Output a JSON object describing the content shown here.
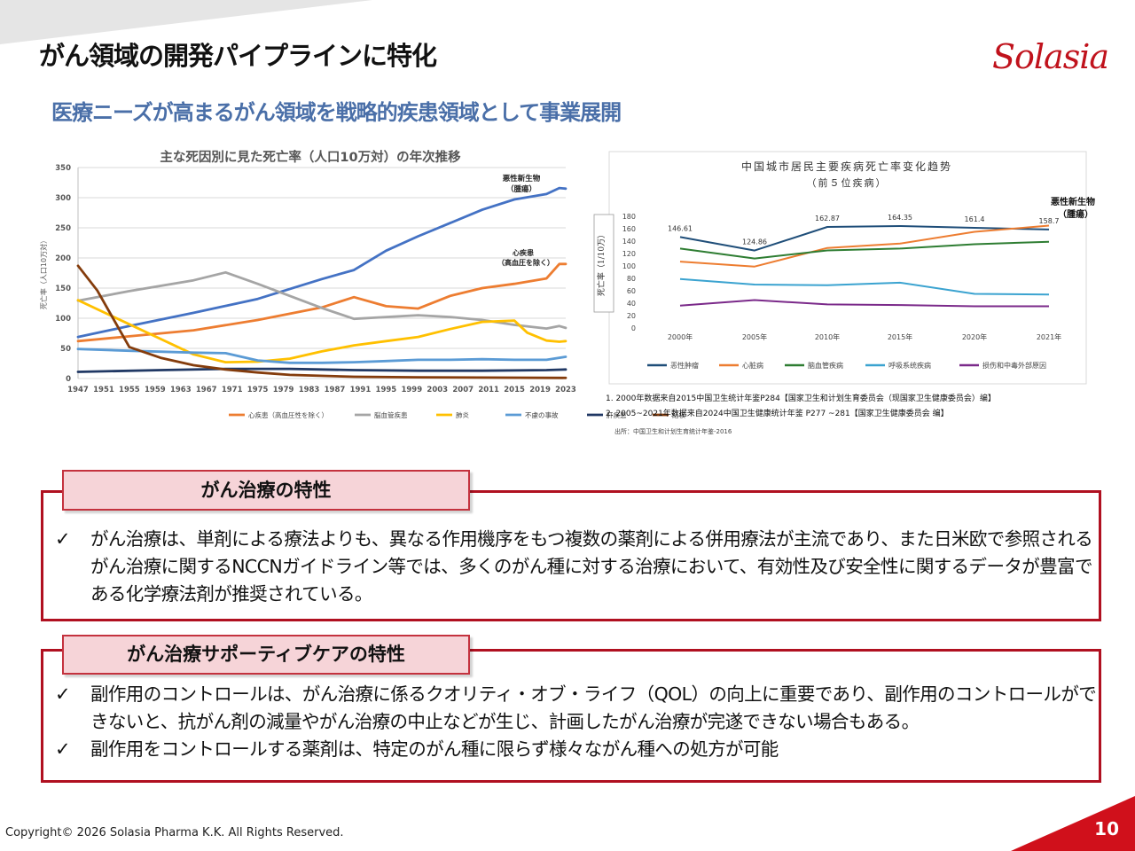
{
  "slide": {
    "title": "がん領域の開発パイプラインに特化",
    "logo": "Solasia",
    "subtitle": "医療ニーズが高まるがん領域を戦略的疾患領域として事業展開",
    "copyright": "Copyright© 2026 Solasia Pharma K.K. All Rights Reserved.",
    "page_number": "10"
  },
  "chart_data": [
    {
      "type": "line",
      "title": "主な死因別に見た死亡率（人口10万対）の年次推移",
      "ylabel": "死亡率（人口10万対）",
      "ylim": [
        0,
        350
      ],
      "yticks": [
        "0",
        "50",
        "100",
        "150",
        "200",
        "250",
        "300",
        "350"
      ],
      "xlim": [
        1947,
        2023
      ],
      "xticks": [
        "1947",
        "1951",
        "1955",
        "1959",
        "1963",
        "1967",
        "1971",
        "1975",
        "1979",
        "1983",
        "1987",
        "1991",
        "1995",
        "1999",
        "2003",
        "2007",
        "2011",
        "2015",
        "2019",
        "2023"
      ],
      "annotations": [
        {
          "text": "悪性新生物",
          "sub": "（腫瘍）",
          "series": "悪性新生物"
        },
        {
          "text": "心疾患",
          "sub": "（高血圧を除く）",
          "series": "心疾患"
        }
      ],
      "series": [
        {
          "name": "悪性新生物",
          "legend": false,
          "color": "#4472c4",
          "x": [
            1947,
            1955,
            1965,
            1975,
            1985,
            1990,
            1995,
            2000,
            2005,
            2010,
            2015,
            2020,
            2022,
            2023
          ],
          "y": [
            69,
            87,
            109,
            132,
            165,
            180,
            212,
            236,
            258,
            280,
            297,
            306,
            316,
            315
          ]
        },
        {
          "name": "心疾患",
          "legend": "心疾患（高血圧性を除く）",
          "color": "#ed7d31",
          "x": [
            1947,
            1955,
            1965,
            1975,
            1985,
            1990,
            1995,
            2000,
            2005,
            2010,
            2015,
            2020,
            2022,
            2023
          ],
          "y": [
            62,
            70,
            80,
            97,
            118,
            135,
            120,
            116,
            137,
            150,
            157,
            166,
            190,
            190
          ]
        },
        {
          "name": "脳血管疾患",
          "legend": "脳血管疾患",
          "color": "#a5a5a5",
          "x": [
            1947,
            1955,
            1965,
            1970,
            1975,
            1985,
            1990,
            1995,
            2000,
            2005,
            2010,
            2015,
            2020,
            2022,
            2023
          ],
          "y": [
            129,
            145,
            163,
            176,
            157,
            117,
            99,
            102,
            105,
            102,
            97,
            89,
            83,
            87,
            84
          ]
        },
        {
          "name": "肺炎",
          "legend": "肺炎",
          "color": "#ffc000",
          "x": [
            1947,
            1955,
            1965,
            1970,
            1975,
            1980,
            1985,
            1990,
            1995,
            2000,
            2005,
            2010,
            2015,
            2017,
            2020,
            2022,
            2023
          ],
          "y": [
            130,
            90,
            40,
            27,
            28,
            33,
            45,
            55,
            62,
            69,
            82,
            94,
            96,
            76,
            63,
            61,
            62
          ]
        },
        {
          "name": "不慮の事故",
          "legend": "不慮の事故",
          "color": "#5b9bd5",
          "x": [
            1947,
            1955,
            1965,
            1970,
            1975,
            1980,
            1985,
            1990,
            1995,
            2000,
            2005,
            2010,
            2015,
            2020,
            2023
          ],
          "y": [
            49,
            46,
            43,
            42,
            30,
            26,
            26,
            27,
            29,
            31,
            31,
            32,
            31,
            31,
            36
          ]
        },
        {
          "name": "肝疾患",
          "legend": "肝疾患",
          "color": "#203864",
          "x": [
            1947,
            1960,
            1970,
            1980,
            1990,
            2000,
            2010,
            2020,
            2023
          ],
          "y": [
            11,
            14,
            16,
            16,
            14,
            13,
            13,
            14,
            15
          ]
        },
        {
          "name": "結核",
          "legend": "結核",
          "color": "#843c0c",
          "x": [
            1947,
            1950,
            1955,
            1960,
            1965,
            1970,
            1975,
            1980,
            1990,
            2000,
            2023
          ],
          "y": [
            187,
            146,
            52,
            34,
            22,
            15,
            10,
            6,
            3,
            2,
            1
          ]
        }
      ]
    },
    {
      "type": "line",
      "title": "中国城市居民主要疾病死亡率变化趋势",
      "subtitle": "（前５位疾病）",
      "ylabel": "死亡率（1/10万）",
      "ylim": [
        0,
        180
      ],
      "yticks": [
        "0",
        "20",
        "40",
        "60",
        "80",
        "100",
        "120",
        "140",
        "160",
        "180"
      ],
      "categories": [
        "2000年",
        "2005年",
        "2010年",
        "2015年",
        "2020年",
        "2021年"
      ],
      "annotation": {
        "text": "悪性新生物",
        "sub": "（腫瘍）"
      },
      "series": [
        {
          "name": "恶性肿瘤",
          "color": "#1f4e79",
          "values": [
            146.61,
            124.86,
            162.87,
            164.35,
            161.4,
            158.7
          ],
          "labels": [
            "146.61",
            "124.86",
            "162.87",
            "164.35",
            "161.4",
            "158.7"
          ]
        },
        {
          "name": "心脏病",
          "color": "#ed7d31",
          "values": [
            107,
            99,
            129,
            136,
            155,
            165
          ]
        },
        {
          "name": "脑血管疾病",
          "color": "#2e7d32",
          "values": [
            128,
            112,
            125,
            128,
            135,
            139
          ]
        },
        {
          "name": "呼吸系统疾病",
          "color": "#3ba3d0",
          "values": [
            79,
            70,
            69,
            73,
            55,
            54
          ]
        },
        {
          "name": "损伤和中毒外部原因",
          "color": "#7b2a8a",
          "values": [
            36,
            45,
            38,
            37,
            35,
            35
          ]
        }
      ],
      "notes": [
        "1.  2000年数据来自2015中国卫生统计年鉴P284【国家卫生和计划生育委员会（现国家卫生健康委员会）编】",
        "2.  2005~2021年数据来自2024中国卫生健康统计年鉴 P277 ~281【国家卫生健康委员会 编】"
      ],
      "source": "出所：中国卫生和计划生育统计年鉴-2016"
    }
  ],
  "panel1": {
    "heading": "がん治療の特性",
    "bullets": [
      "がん治療は、単剤による療法よりも、異なる作用機序をもつ複数の薬剤による併用療法が主流であり、また日米欧で参照されるがん治療に関するNCCNガイドライン等では、多くのがん種に対する治療において、有効性及び安全性に関するデータが豊富である化学療法剤が推奨されている。"
    ]
  },
  "panel2": {
    "heading": "がん治療サポーティブケアの特性",
    "bullets": [
      "副作用のコントロールは、がん治療に係るクオリティ・オブ・ライフ（QOL）の向上に重要であり、副作用のコントロールができないと、抗がん剤の減量やがん治療の中止などが生じ、計画したがん治療が完遂できない場合もある。",
      "副作用をコントロールする薬剤は、特定のがん種に限らず様々ながん種への処方が可能"
    ]
  },
  "check_mark": "✓"
}
